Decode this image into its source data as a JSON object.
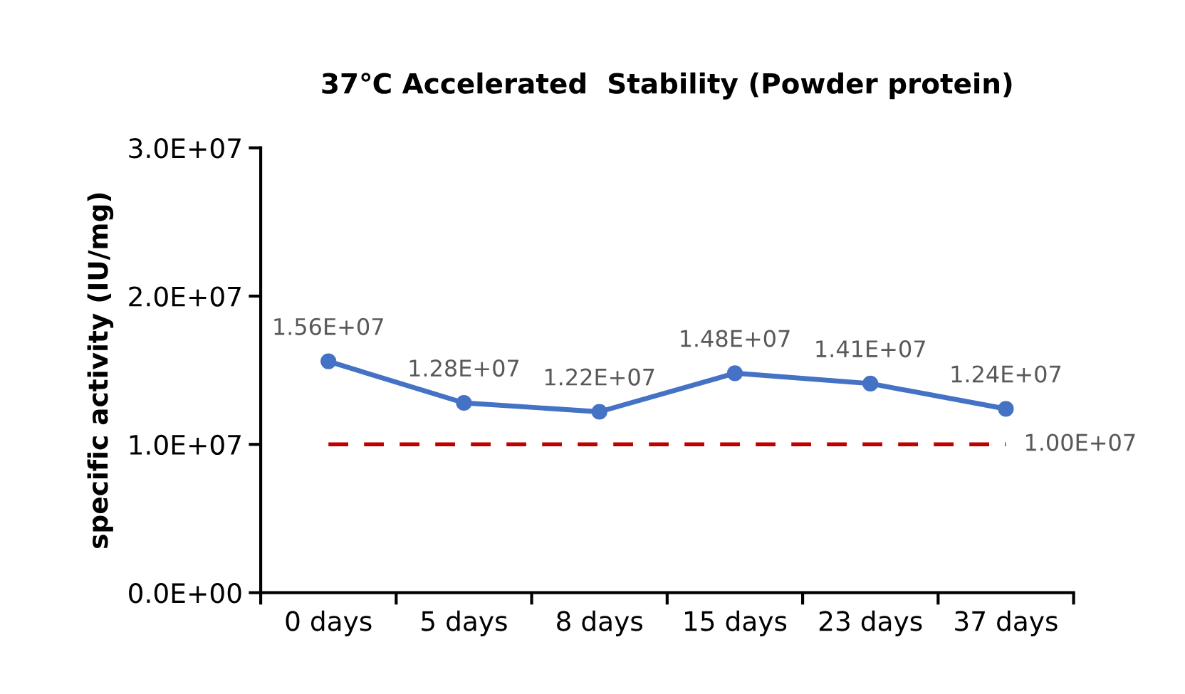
{
  "chart_data": {
    "type": "line",
    "title": "37℃ Accelerated  Stability (Powder protein)",
    "ylabel": "specific activity (IU/mg)",
    "categories": [
      "0 days",
      "5 days",
      "8 days",
      "15 days",
      "23 days",
      "37 days"
    ],
    "series": [
      {
        "color": "#4472c4",
        "values": [
          15600000,
          12800000,
          12200000,
          14800000,
          14100000,
          12400000
        ],
        "value_labels": [
          "1.56E+07",
          "1.28E+07",
          "1.22E+07",
          "1.48E+07",
          "1.41E+07",
          "1.24E+07"
        ]
      }
    ],
    "ylim": [
      0,
      30000000
    ],
    "yticks": [
      {
        "value": 0,
        "label": "0.0E+00"
      },
      {
        "value": 10000000,
        "label": "1.0E+07"
      },
      {
        "value": 20000000,
        "label": "2.0E+07"
      },
      {
        "value": 30000000,
        "label": "3.0E+07"
      }
    ],
    "ref_lines": [
      {
        "axis": "y",
        "value": 10000000,
        "label": "1.00E+07",
        "color": "#c00000",
        "line_style": "dashed"
      }
    ],
    "marker": "circle",
    "line_style": "solid",
    "grid": false,
    "legend": false
  }
}
